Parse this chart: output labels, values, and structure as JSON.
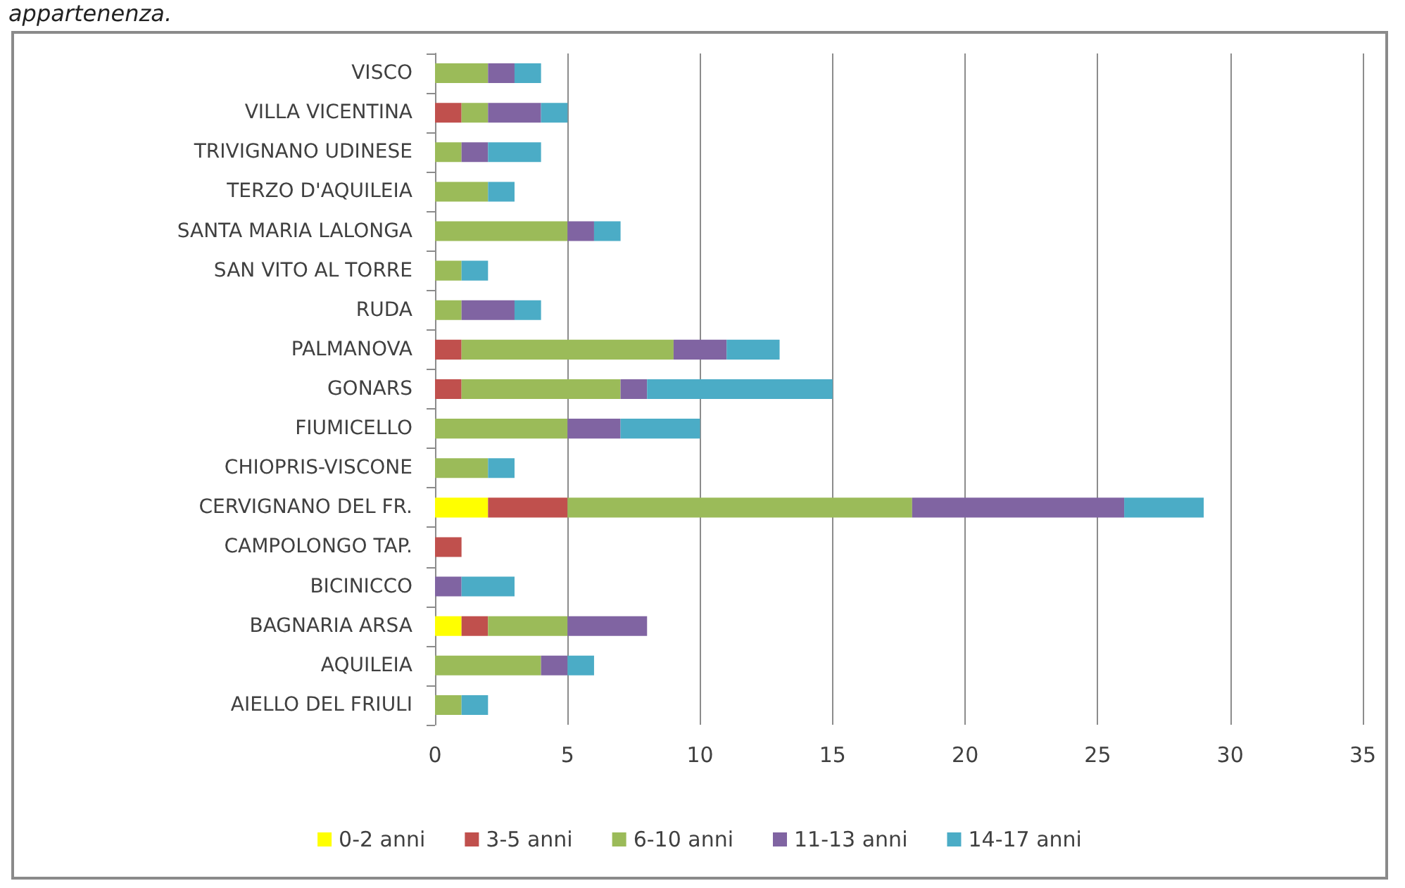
{
  "chart_data": {
    "type": "bar",
    "orientation": "horizontal",
    "stacked": true,
    "annotations": [
      "appartenenza."
    ],
    "categories": [
      "VISCO",
      "VILLA VICENTINA",
      "TRIVIGNANO UDINESE",
      "TERZO D'AQUILEIA",
      "SANTA MARIA LALONGA",
      "SAN VITO AL TORRE",
      "RUDA",
      "PALMANOVA",
      "GONARS",
      "FIUMICELLO",
      "CHIOPRIS-VISCONE",
      "CERVIGNANO DEL FR.",
      "CAMPOLONGO TAP.",
      "BICINICCO",
      "BAGNARIA ARSA",
      "AQUILEIA",
      "AIELLO DEL FRIULI"
    ],
    "series": [
      {
        "name": "0-2 anni",
        "color": "#ffff00",
        "values": [
          0,
          0,
          0,
          0,
          0,
          0,
          0,
          0,
          0,
          0,
          0,
          2,
          0,
          0,
          1,
          0,
          0
        ]
      },
      {
        "name": "3-5 anni",
        "color": "#c0504d",
        "values": [
          0,
          1,
          0,
          0,
          0,
          0,
          0,
          1,
          1,
          0,
          0,
          3,
          1,
          0,
          1,
          0,
          0
        ]
      },
      {
        "name": "6-10 anni",
        "color": "#9bbb59",
        "values": [
          2,
          1,
          1,
          2,
          5,
          1,
          1,
          8,
          6,
          5,
          2,
          13,
          0,
          0,
          3,
          4,
          1
        ]
      },
      {
        "name": "11-13 anni",
        "color": "#8064a2",
        "values": [
          1,
          2,
          1,
          0,
          1,
          0,
          2,
          2,
          1,
          2,
          0,
          8,
          0,
          1,
          3,
          1,
          0
        ]
      },
      {
        "name": "14-17 anni",
        "color": "#4bacc6",
        "values": [
          1,
          1,
          2,
          1,
          1,
          1,
          1,
          2,
          7,
          3,
          1,
          3,
          0,
          2,
          0,
          1,
          1
        ]
      }
    ],
    "xlim": [
      0,
      35
    ],
    "xticks": [
      0,
      5,
      10,
      15,
      20,
      25,
      30,
      35
    ],
    "grid": "x",
    "legend": "bottom"
  }
}
